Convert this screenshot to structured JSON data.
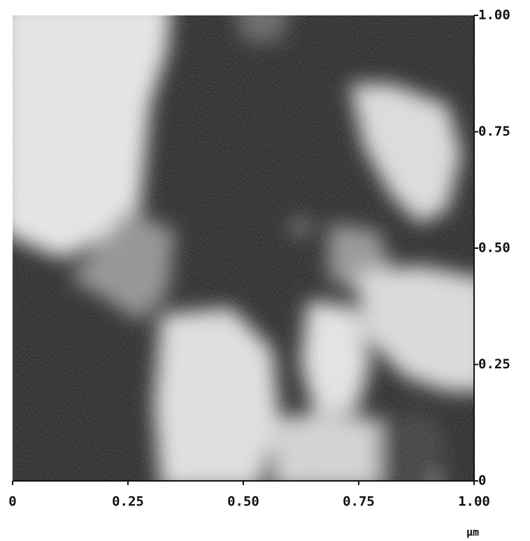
{
  "chart_data": {
    "type": "image",
    "xlabel": "μm",
    "xlim": [
      0,
      1
    ],
    "ylim": [
      0,
      1
    ],
    "xticks": [
      0,
      0.25,
      {
        "value": 0.5,
        "label": "0.50"
      },
      0.75,
      {
        "value": 1,
        "label": "1.00"
      }
    ],
    "yticks": [
      0,
      0.25,
      {
        "value": 0.5,
        "label": "0.50"
      },
      0.75,
      {
        "value": 1,
        "label": "1.00"
      }
    ]
  }
}
